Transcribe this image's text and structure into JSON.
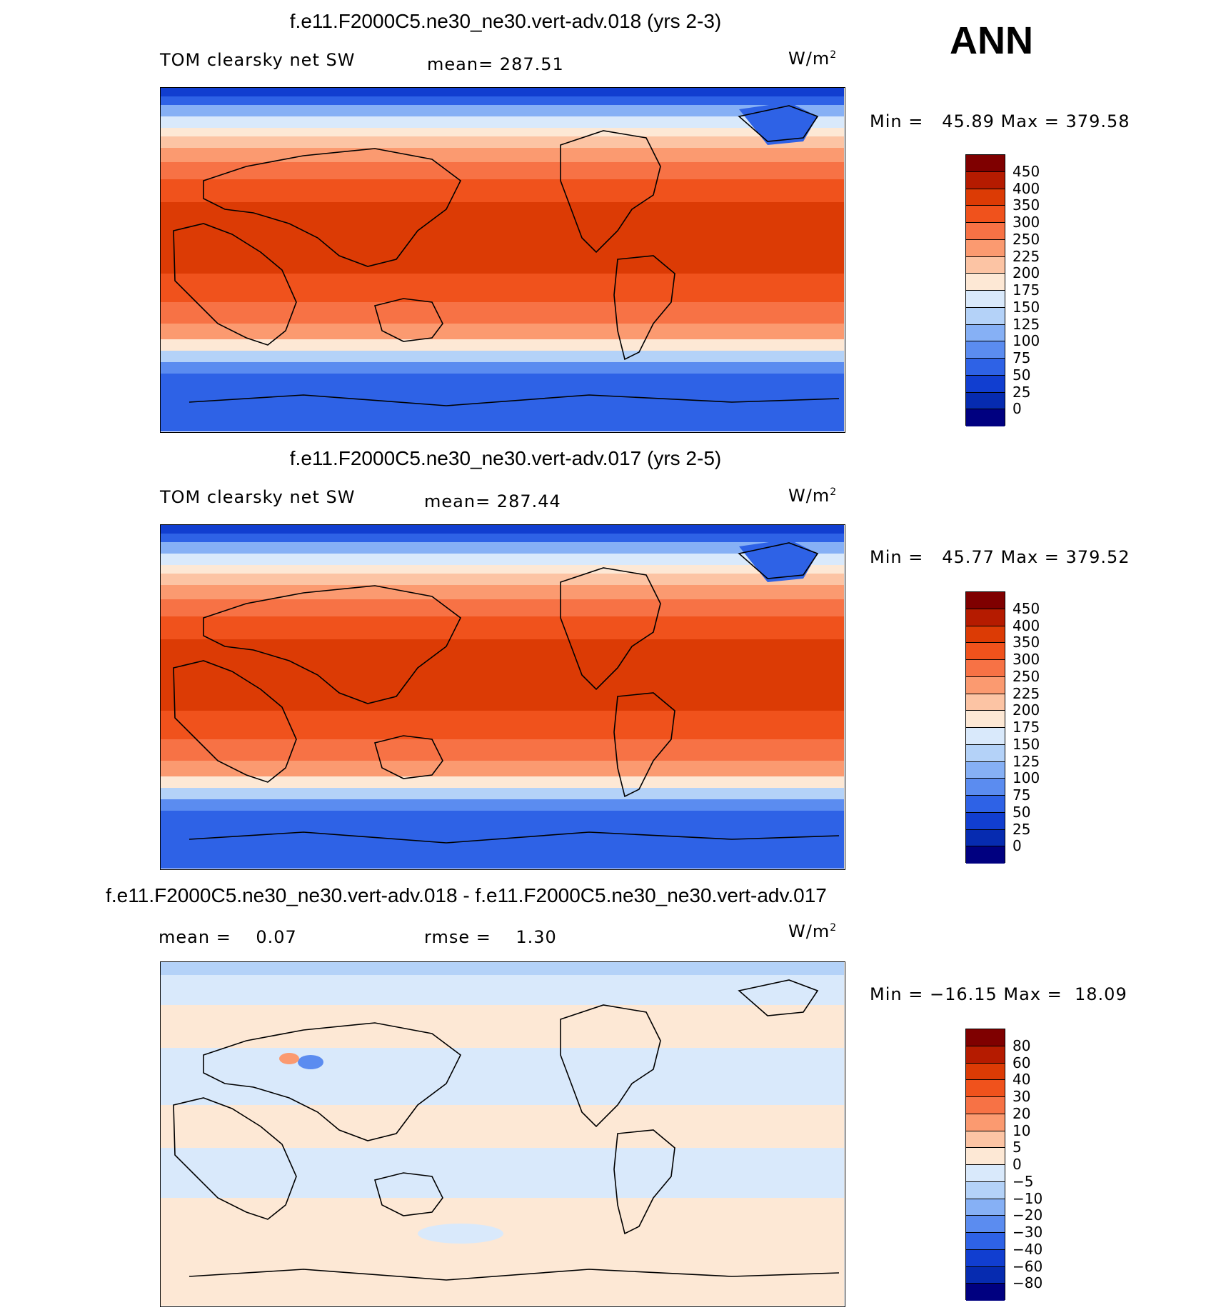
{
  "header": {
    "season": "ANN"
  },
  "panels": [
    {
      "title": "f.e11.F2000C5.ne30_ne30.vert-adv.018 (yrs 2-3)",
      "left_label": "TOM clearsky net SW",
      "center_label": "mean= 287.51",
      "units": "W/m",
      "units_sup": "2",
      "minmax": "Min =   45.89 Max = 379.58",
      "colorbar": {
        "labels": [
          "450",
          "400",
          "350",
          "300",
          "250",
          "225",
          "200",
          "175",
          "150",
          "125",
          "100",
          "75",
          "50",
          "25",
          "0"
        ],
        "colors": [
          "#7f0000",
          "#b51b00",
          "#dc3b05",
          "#f0521c",
          "#f77245",
          "#fb9a70",
          "#fcc4a4",
          "#fde8d5",
          "#d9e9fb",
          "#b4d2f8",
          "#86b0f5",
          "#5b8cf0",
          "#2e62e6",
          "#113ed0",
          "#062bb0",
          "#000080"
        ]
      },
      "field_kind": "full"
    },
    {
      "title": "f.e11.F2000C5.ne30_ne30.vert-adv.017 (yrs 2-5)",
      "left_label": "TOM clearsky net SW",
      "center_label": "mean= 287.44",
      "units": "W/m",
      "units_sup": "2",
      "minmax": "Min =   45.77 Max = 379.52",
      "colorbar": {
        "labels": [
          "450",
          "400",
          "350",
          "300",
          "250",
          "225",
          "200",
          "175",
          "150",
          "125",
          "100",
          "75",
          "50",
          "25",
          "0"
        ],
        "colors": [
          "#7f0000",
          "#b51b00",
          "#dc3b05",
          "#f0521c",
          "#f77245",
          "#fb9a70",
          "#fcc4a4",
          "#fde8d5",
          "#d9e9fb",
          "#b4d2f8",
          "#86b0f5",
          "#5b8cf0",
          "#2e62e6",
          "#113ed0",
          "#062bb0",
          "#000080"
        ]
      },
      "field_kind": "full"
    },
    {
      "title": "f.e11.F2000C5.ne30_ne30.vert-adv.018 - f.e11.F2000C5.ne30_ne30.vert-adv.017",
      "left_label": "mean =    0.07",
      "center_label": "rmse =    1.30",
      "units": "W/m",
      "units_sup": "2",
      "minmax": "Min = −16.15 Max =  18.09",
      "colorbar": {
        "labels": [
          "80",
          "60",
          "40",
          "30",
          "20",
          "10",
          "5",
          "0",
          "−5",
          "−10",
          "−20",
          "−30",
          "−40",
          "−60",
          "−80"
        ],
        "colors": [
          "#7f0000",
          "#b51b00",
          "#dc3b05",
          "#f0521c",
          "#f77245",
          "#fb9a70",
          "#fcc4a4",
          "#fde8d5",
          "#d9e9fb",
          "#b4d2f8",
          "#86b0f5",
          "#5b8cf0",
          "#2e62e6",
          "#113ed0",
          "#062bb0",
          "#000080"
        ]
      },
      "field_kind": "diff"
    }
  ]
}
